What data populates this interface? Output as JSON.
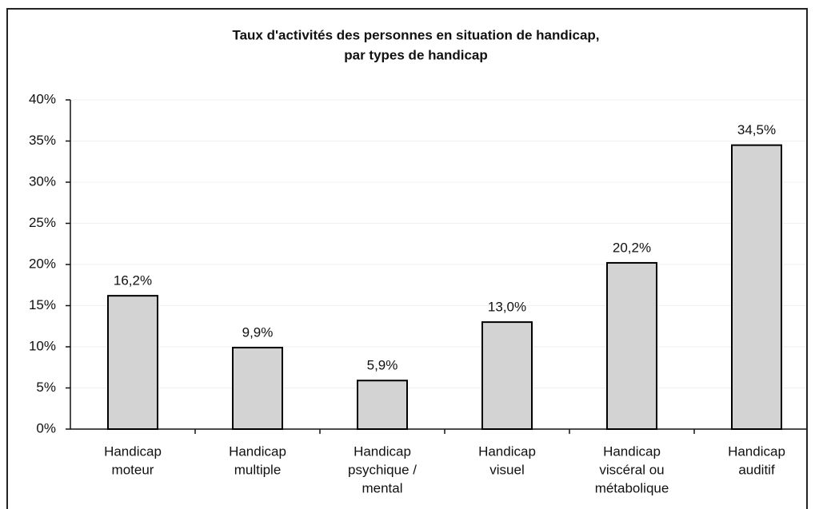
{
  "chart_data": {
    "type": "bar",
    "title": [
      "Taux d'activités des personnes en situation de handicap,",
      "par types de handicap"
    ],
    "categories": [
      [
        "Handicap",
        "moteur"
      ],
      [
        "Handicap",
        "multiple"
      ],
      [
        "Handicap",
        "psychique /",
        "mental"
      ],
      [
        "Handicap",
        "visuel"
      ],
      [
        "Handicap",
        "viscéral ou",
        "métabolique"
      ],
      [
        "Handicap",
        "auditif"
      ]
    ],
    "values": [
      16.2,
      9.9,
      5.9,
      13.0,
      20.2,
      34.5
    ],
    "value_labels": [
      "16,2%",
      "9,9%",
      "5,9%",
      "13,0%",
      "20,2%",
      "34,5%"
    ],
    "color": "#d3d3d3",
    "ylim": [
      0,
      40
    ],
    "yticks": [
      {
        "value": 0,
        "label": "0%"
      },
      {
        "value": 5,
        "label": "5%"
      },
      {
        "value": 10,
        "label": "10%"
      },
      {
        "value": 15,
        "label": "15%"
      },
      {
        "value": 20,
        "label": "20%"
      },
      {
        "value": 25,
        "label": "25%"
      },
      {
        "value": 30,
        "label": "30%"
      },
      {
        "value": 35,
        "label": "35%"
      },
      {
        "value": 40,
        "label": "40%"
      }
    ],
    "grid": true
  }
}
